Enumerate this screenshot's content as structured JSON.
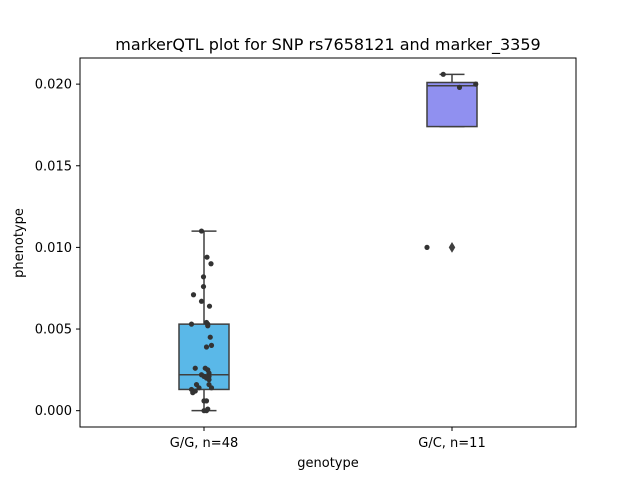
{
  "chart_data": {
    "type": "box",
    "title": "markerQTL plot for SNP rs7658121 and marker_3359",
    "xlabel": "genotype",
    "ylabel": "phenotype",
    "ylim": [
      -0.001,
      0.0216
    ],
    "yticks": [
      0.0,
      0.005,
      0.01,
      0.015,
      0.02
    ],
    "ytick_labels": [
      "0.000",
      "0.005",
      "0.010",
      "0.015",
      "0.020"
    ],
    "grid": false,
    "categories": [
      "G/G, n=48",
      "G/C, n=11"
    ],
    "boxes": [
      {
        "category": "G/G, n=48",
        "color": "#5ab8e8",
        "whisker_low": 0.0,
        "q1": 0.0013,
        "median": 0.0022,
        "q3": 0.0053,
        "whisker_high": 0.011,
        "outliers": [],
        "points": [
          0.011,
          0.0094,
          0.009,
          0.0082,
          0.0076,
          0.0071,
          0.0067,
          0.0064,
          0.0054,
          0.0053,
          0.0053,
          0.0052,
          0.0045,
          0.004,
          0.0039,
          0.0026,
          0.0026,
          0.0025,
          0.0023,
          0.0022,
          0.0021,
          0.0021,
          0.002,
          0.0019,
          0.0016,
          0.0016,
          0.0014,
          0.0014,
          0.0013,
          0.0012,
          0.0011,
          0.0006,
          0.0006,
          0.0001,
          0.0,
          0.0
        ],
        "point_offsets": [
          -0.1,
          0.12,
          0.28,
          -0.02,
          -0.02,
          -0.42,
          -0.1,
          0.22,
          0.1,
          -0.5,
          0.15,
          0.15,
          0.25,
          0.3,
          0.1,
          -0.35,
          0.05,
          0.15,
          0.2,
          -0.1,
          0.0,
          0.2,
          0.1,
          0.2,
          -0.3,
          0.2,
          0.3,
          -0.2,
          -0.5,
          -0.35,
          -0.45,
          0.0,
          0.1,
          0.15,
          0.0,
          0.1
        ]
      },
      {
        "category": "G/C, n=11",
        "color": "#9090f0",
        "whisker_low": 0.0174,
        "q1": 0.0174,
        "median": 0.0199,
        "q3": 0.0201,
        "whisker_high": 0.0206,
        "outliers": [
          0.01
        ],
        "points": [
          0.0206,
          0.02,
          0.0198,
          0.01
        ],
        "point_offsets": [
          -0.35,
          0.95,
          0.3,
          -1.0
        ]
      }
    ]
  }
}
